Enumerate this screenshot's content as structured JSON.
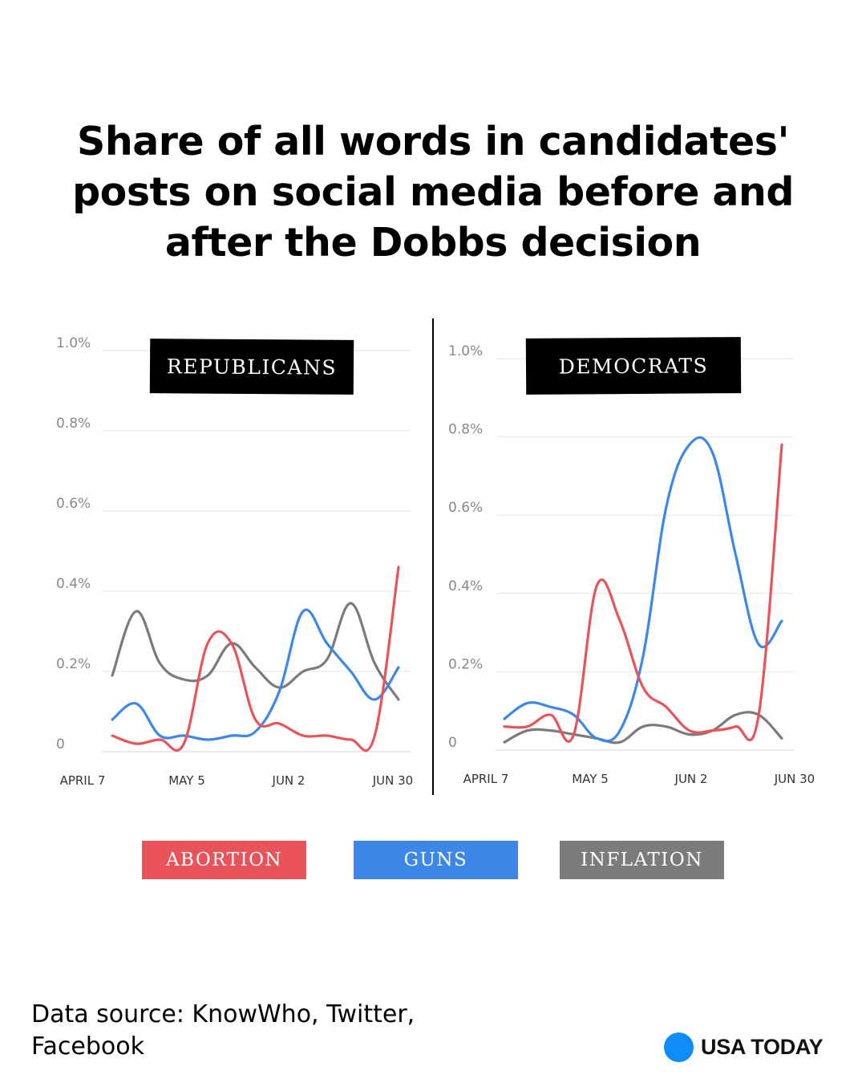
{
  "title": "Share of all words in candidates' posts on social media before and after the Dobbs decision",
  "source": "Data source: KnowWho, Twitter, Facebook",
  "brand": {
    "name": "USA TODAY",
    "dot_color": "#0f8cf8"
  },
  "legend": [
    {
      "label": "ABORTION",
      "color": "#e8545a"
    },
    {
      "label": "GUNS",
      "color": "#3d87e8"
    },
    {
      "label": "INFLATION",
      "color": "#7b7b7b"
    }
  ],
  "chart_data": [
    {
      "type": "line",
      "title": "REPUBLICANS",
      "x_ticks": [
        "APRIL 7",
        "MAY 5",
        "JUN 2",
        "JUN 30"
      ],
      "y_ticks": [
        "0",
        "0.2%",
        "0.4%",
        "0.6%",
        "0.8%",
        "1.0%"
      ],
      "ylim": [
        0,
        1.0
      ],
      "x": [
        "Apr 7",
        "Apr 14",
        "Apr 21",
        "Apr 28",
        "May 5",
        "May 12",
        "May 19",
        "May 26",
        "Jun 2",
        "Jun 9",
        "Jun 16",
        "Jun 23",
        "Jun 30"
      ],
      "series": [
        {
          "name": "ABORTION",
          "values": [
            0.04,
            0.02,
            0.03,
            0.02,
            0.27,
            0.27,
            0.08,
            0.07,
            0.04,
            0.04,
            0.03,
            0.04,
            0.46
          ]
        },
        {
          "name": "GUNS",
          "values": [
            0.08,
            0.12,
            0.04,
            0.04,
            0.03,
            0.04,
            0.05,
            0.15,
            0.35,
            0.27,
            0.2,
            0.13,
            0.21
          ]
        },
        {
          "name": "INFLATION",
          "values": [
            0.19,
            0.35,
            0.22,
            0.18,
            0.19,
            0.27,
            0.21,
            0.16,
            0.2,
            0.23,
            0.37,
            0.22,
            0.13
          ]
        }
      ],
      "grid": true
    },
    {
      "type": "line",
      "title": "DEMOCRATS",
      "x_ticks": [
        "APRIL 7",
        "MAY 5",
        "JUN 2",
        "JUN 30"
      ],
      "y_ticks": [
        "0",
        "0.2%",
        "0.4%",
        "0.6%",
        "0.8%",
        "1.0%"
      ],
      "ylim": [
        0,
        1.0
      ],
      "x": [
        "Apr 7",
        "Apr 14",
        "Apr 21",
        "Apr 28",
        "May 5",
        "May 12",
        "May 19",
        "May 26",
        "Jun 2",
        "Jun 9",
        "Jun 16",
        "Jun 23",
        "Jun 30"
      ],
      "series": [
        {
          "name": "ABORTION",
          "values": [
            0.06,
            0.06,
            0.09,
            0.04,
            0.42,
            0.33,
            0.16,
            0.11,
            0.05,
            0.05,
            0.06,
            0.09,
            0.78
          ]
        },
        {
          "name": "GUNS",
          "values": [
            0.08,
            0.12,
            0.11,
            0.09,
            0.03,
            0.05,
            0.24,
            0.62,
            0.78,
            0.76,
            0.5,
            0.27,
            0.33
          ]
        },
        {
          "name": "INFLATION",
          "values": [
            0.02,
            0.05,
            0.05,
            0.04,
            0.03,
            0.02,
            0.06,
            0.06,
            0.04,
            0.05,
            0.09,
            0.09,
            0.03
          ]
        }
      ],
      "grid": true
    }
  ]
}
